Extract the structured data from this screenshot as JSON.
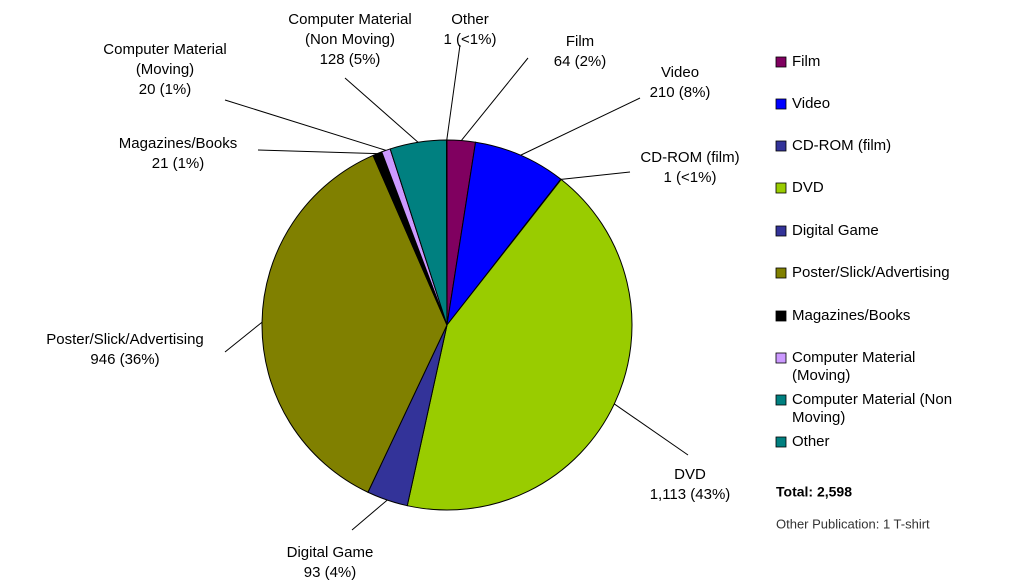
{
  "chart_data": {
    "type": "pie",
    "categories": [
      "Film",
      "Video",
      "CD-ROM (film)",
      "DVD",
      "Digital Game",
      "Poster/Slick/Advertising",
      "Magazines/Books",
      "Computer Material (Moving)",
      "Computer Material (Non Moving)",
      "Other"
    ],
    "values": [
      64,
      210,
      1,
      1113,
      93,
      946,
      21,
      20,
      128,
      1
    ],
    "value_labels": [
      "64 (2%)",
      "210 (8%)",
      "1 (<1%)",
      "1,113 (43%)",
      "93 (4%)",
      "946 (36%)",
      "21 (1%)",
      "20 (1%)",
      "128 (5%)",
      "1 (<1%)"
    ],
    "colors": [
      "#800060",
      "#0000ff",
      "#333399",
      "#99cc00",
      "#333399",
      "#808000",
      "#000000",
      "#cc99ff",
      "#008080",
      "#008080"
    ],
    "legend": "right",
    "annotations": [
      "Total: 2,598",
      "Other Publication: 1 T-shirt"
    ]
  }
}
